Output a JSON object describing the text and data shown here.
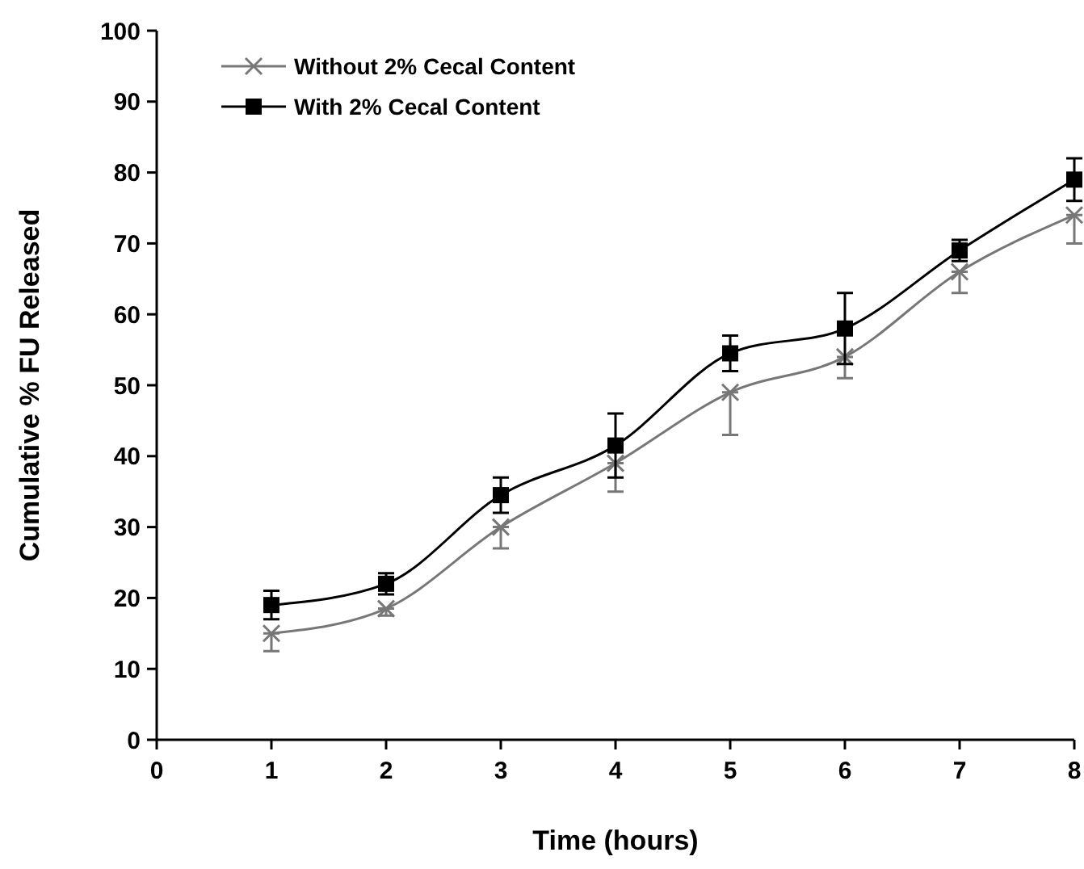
{
  "chart_data": {
    "type": "line",
    "xlabel": "Time (hours)",
    "ylabel": "Cumulative % FU Released",
    "x": [
      1,
      2,
      3,
      4,
      5,
      6,
      7,
      8
    ],
    "series": [
      {
        "name": "Without 2% Cecal Content",
        "color": "#777777",
        "marker": "cross",
        "values": [
          15,
          18.5,
          30,
          39,
          49,
          54,
          66,
          74
        ],
        "errors": [
          [
            12.5,
            15
          ],
          [
            17.5,
            18.5
          ],
          [
            27,
            30
          ],
          [
            35,
            39
          ],
          [
            43,
            49
          ],
          [
            51,
            54
          ],
          [
            63,
            66
          ],
          [
            70,
            74
          ]
        ]
      },
      {
        "name": "With 2% Cecal Content",
        "color": "#000000",
        "marker": "square",
        "values": [
          19,
          22,
          34.5,
          41.5,
          54.5,
          58,
          69,
          79
        ],
        "errors": [
          2,
          1.5,
          2.5,
          4.5,
          2.5,
          5,
          1.5,
          3
        ]
      }
    ],
    "xlim": [
      0,
      8
    ],
    "xticks": [
      0,
      1,
      2,
      3,
      4,
      5,
      6,
      7,
      8
    ],
    "ylim": [
      0,
      100
    ],
    "yticks": [
      0,
      10,
      20,
      30,
      40,
      50,
      60,
      70,
      80,
      90,
      100
    ],
    "grid": false,
    "legend": "top left"
  }
}
